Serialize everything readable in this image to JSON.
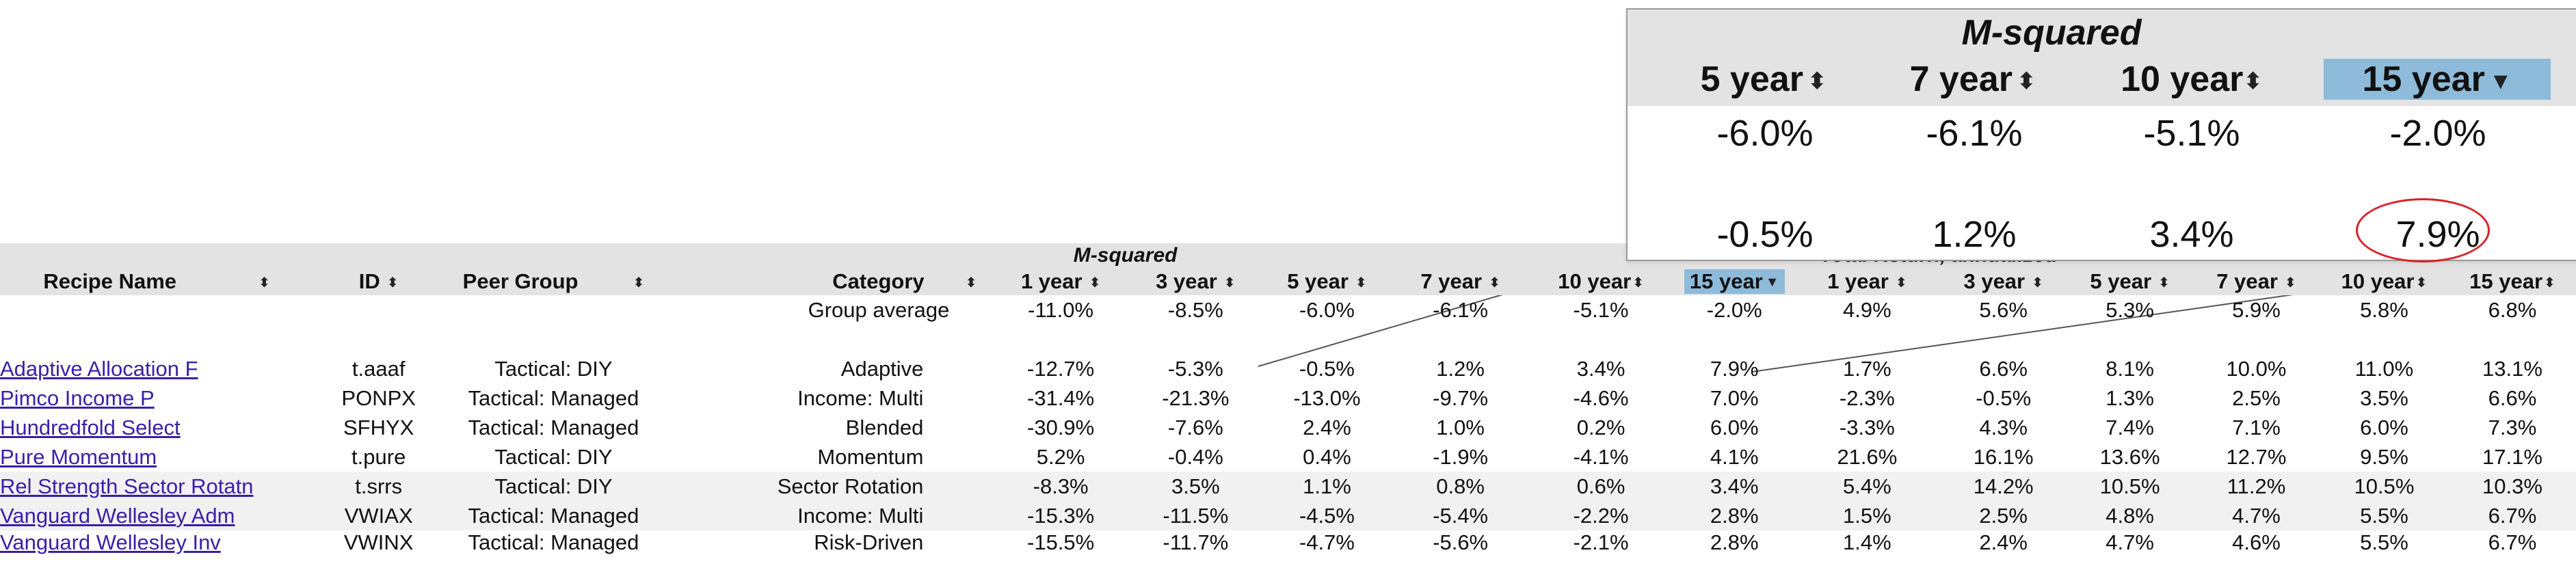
{
  "group_labels": {
    "msquared": "M-squared",
    "total_return": "Total Return, annualized"
  },
  "headers": {
    "recipe_name": "Recipe Name",
    "id": "ID",
    "peer_group": "Peer Group",
    "category": "Category",
    "ms_1y": "1 year",
    "ms_3y": "3 year",
    "ms_5y": "5 year",
    "ms_7y": "7 year",
    "ms_10y": "10 year",
    "ms_15y": "15 year",
    "tr_1y": "1 year",
    "tr_3y": "3 year",
    "tr_5y": "5 year",
    "tr_7y": "7 year",
    "tr_10y": "10 year",
    "tr_15y": "15 year"
  },
  "sort_icon": "sort-updown-icon",
  "selected_sort_icon": "sort-desc-icon",
  "selected_column": "ms_15y",
  "group_average": {
    "label": "Group average",
    "ms": [
      "-11.0%",
      "-8.5%",
      "-6.0%",
      "-6.1%",
      "-5.1%",
      "-2.0%"
    ],
    "tr": [
      "4.9%",
      "5.6%",
      "5.3%",
      "5.9%",
      "5.8%",
      "6.8%"
    ]
  },
  "rows": [
    {
      "name": "Adaptive Allocation F",
      "id": "t.aaaf",
      "peer": "Tactical: DIY",
      "category": "Adaptive",
      "ms": [
        "-12.7%",
        "-5.3%",
        "-0.5%",
        "1.2%",
        "3.4%",
        "7.9%"
      ],
      "tr": [
        "1.7%",
        "6.6%",
        "8.1%",
        "10.0%",
        "11.0%",
        "13.1%"
      ],
      "shade": false
    },
    {
      "name": "Pimco Income P",
      "id": "PONPX",
      "peer": "Tactical: Managed",
      "category": "Income: Multi",
      "ms": [
        "-31.4%",
        "-21.3%",
        "-13.0%",
        "-9.7%",
        "-4.6%",
        "7.0%"
      ],
      "tr": [
        "-2.3%",
        "-0.5%",
        "1.3%",
        "2.5%",
        "3.5%",
        "6.6%"
      ],
      "shade": false
    },
    {
      "name": "Hundredfold Select",
      "id": "SFHYX",
      "peer": "Tactical: Managed",
      "category": "Blended",
      "ms": [
        "-30.9%",
        "-7.6%",
        "2.4%",
        "1.0%",
        "0.2%",
        "6.0%"
      ],
      "tr": [
        "-3.3%",
        "4.3%",
        "7.4%",
        "7.1%",
        "6.0%",
        "7.3%"
      ],
      "shade": false
    },
    {
      "name": "Pure Momentum",
      "id": "t.pure",
      "peer": "Tactical: DIY",
      "category": "Momentum",
      "ms": [
        "5.2%",
        "-0.4%",
        "0.4%",
        "-1.9%",
        "-4.1%",
        "4.1%"
      ],
      "tr": [
        "21.6%",
        "16.1%",
        "13.6%",
        "12.7%",
        "9.5%",
        "17.1%"
      ],
      "shade": false
    },
    {
      "name": "Rel Strength Sector Rotatn",
      "id": "t.srrs",
      "peer": "Tactical: DIY",
      "category": "Sector Rotation",
      "ms": [
        "-8.3%",
        "3.5%",
        "1.1%",
        "0.8%",
        "0.6%",
        "3.4%"
      ],
      "tr": [
        "5.4%",
        "14.2%",
        "10.5%",
        "11.2%",
        "10.5%",
        "10.3%"
      ],
      "shade": true
    },
    {
      "name": "Vanguard Wellesley Adm",
      "id": "VWIAX",
      "peer": "Tactical: Managed",
      "category": "Income: Multi",
      "ms": [
        "-15.3%",
        "-11.5%",
        "-4.5%",
        "-5.4%",
        "-2.2%",
        "2.8%"
      ],
      "tr": [
        "1.5%",
        "2.5%",
        "4.8%",
        "4.7%",
        "5.5%",
        "6.7%"
      ],
      "shade": true
    },
    {
      "name": "Vanguard Wellesley Inv",
      "id": "VWINX",
      "peer": "Tactical: Managed",
      "category": "Risk-Driven",
      "ms": [
        "-15.5%",
        "-11.7%",
        "-4.7%",
        "-5.6%",
        "-2.1%",
        "2.8%"
      ],
      "tr": [
        "1.4%",
        "2.4%",
        "4.7%",
        "4.6%",
        "5.5%",
        "6.7%"
      ],
      "shade": false
    }
  ],
  "zoom": {
    "title": "M-squared",
    "columns": [
      "5 year",
      "7 year",
      "10 year",
      "15 year"
    ],
    "selected_index": 3,
    "row1": [
      "-6.0%",
      "-6.1%",
      "-5.1%",
      "-2.0%"
    ],
    "row2": [
      "-0.5%",
      "1.2%",
      "3.4%",
      "7.9%"
    ],
    "highlight": "7.9%"
  },
  "colors": {
    "header_bg": "#e3e3e3",
    "selected_header": "#8fbbdb",
    "link": "#3a1fa8",
    "callout": "#d9232a"
  }
}
